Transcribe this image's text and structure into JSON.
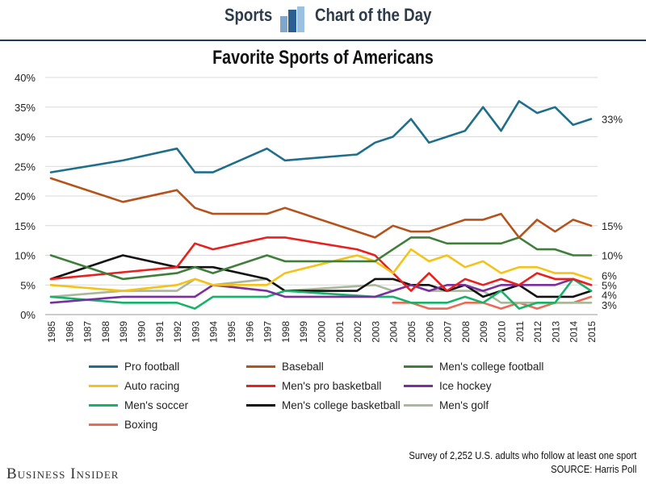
{
  "header": {
    "left_word": "Sports",
    "right_word": "Chart of the Day",
    "logo_icon": "bar-chart-logo-icon"
  },
  "colors": {
    "header_text": "#2e3b4a",
    "rule": "#1d3a5b",
    "grid": "#d9d9d9"
  },
  "footer": {
    "brand": "Business Insider",
    "note_line1": "Survey of 2,252 U.S. adults who follow at least one sport",
    "note_line2": "SOURCE: Harris Poll"
  },
  "chart_data": {
    "type": "line",
    "title": "Favorite Sports of Americans",
    "xlabel": "",
    "ylabel": "",
    "ylim": [
      0,
      40
    ],
    "xlim": [
      1985,
      2015
    ],
    "yticks": [
      0,
      5,
      10,
      15,
      20,
      25,
      30,
      35,
      40
    ],
    "ytick_labels": [
      "0%",
      "5%",
      "10%",
      "15%",
      "20%",
      "25%",
      "30%",
      "35%",
      "40%"
    ],
    "xtick_labels": [
      "1985",
      "1986",
      "1987",
      "1988",
      "1989",
      "1990",
      "1991",
      "1992",
      "1993",
      "1994",
      "1995",
      "1996",
      "1997",
      "1998",
      "1999",
      "2000",
      "2001",
      "2002",
      "2003",
      "2004",
      "2005",
      "2006",
      "2007",
      "2008",
      "2009",
      "2010",
      "2011",
      "2012",
      "2013",
      "2014",
      "2015"
    ],
    "grid": "horizontal",
    "legend_position": "bottom",
    "series": [
      {
        "name": "Pro football",
        "color": "#1f6e8c",
        "points": [
          [
            1985,
            24
          ],
          [
            1989,
            26
          ],
          [
            1992,
            28
          ],
          [
            1993,
            24
          ],
          [
            1994,
            24
          ],
          [
            1997,
            28
          ],
          [
            1998,
            26
          ],
          [
            2002,
            27
          ],
          [
            2003,
            29
          ],
          [
            2004,
            30
          ],
          [
            2005,
            33
          ],
          [
            2006,
            29
          ],
          [
            2007,
            30
          ],
          [
            2008,
            31
          ],
          [
            2009,
            35
          ],
          [
            2010,
            31
          ],
          [
            2011,
            36
          ],
          [
            2012,
            34
          ],
          [
            2013,
            35
          ],
          [
            2014,
            32
          ],
          [
            2015,
            33
          ]
        ],
        "end_label": "33%"
      },
      {
        "name": "Baseball",
        "color": "#b5531c",
        "points": [
          [
            1985,
            23
          ],
          [
            1989,
            19
          ],
          [
            1992,
            21
          ],
          [
            1993,
            18
          ],
          [
            1994,
            17
          ],
          [
            1997,
            17
          ],
          [
            1998,
            18
          ],
          [
            2003,
            13
          ],
          [
            2004,
            15
          ],
          [
            2005,
            14
          ],
          [
            2006,
            14
          ],
          [
            2007,
            15
          ],
          [
            2008,
            16
          ],
          [
            2009,
            16
          ],
          [
            2010,
            17
          ],
          [
            2011,
            13
          ],
          [
            2012,
            16
          ],
          [
            2013,
            14
          ],
          [
            2014,
            16
          ],
          [
            2015,
            15
          ]
        ],
        "end_label": "15%"
      },
      {
        "name": "Men's college football",
        "color": "#3f7f3a",
        "points": [
          [
            1985,
            10
          ],
          [
            1989,
            6
          ],
          [
            1992,
            7
          ],
          [
            1993,
            8
          ],
          [
            1994,
            7
          ],
          [
            1997,
            10
          ],
          [
            1998,
            9
          ],
          [
            2003,
            9
          ],
          [
            2004,
            11
          ],
          [
            2005,
            13
          ],
          [
            2006,
            13
          ],
          [
            2007,
            12
          ],
          [
            2008,
            12
          ],
          [
            2009,
            12
          ],
          [
            2010,
            12
          ],
          [
            2011,
            13
          ],
          [
            2012,
            11
          ],
          [
            2013,
            11
          ],
          [
            2014,
            10
          ],
          [
            2015,
            10
          ]
        ],
        "end_label": "10%"
      },
      {
        "name": "Auto racing",
        "color": "#f5c218",
        "points": [
          [
            1985,
            5
          ],
          [
            1989,
            4
          ],
          [
            1992,
            5
          ],
          [
            1993,
            6
          ],
          [
            1994,
            5
          ],
          [
            1997,
            5
          ],
          [
            1998,
            7
          ],
          [
            2002,
            10
          ],
          [
            2003,
            9
          ],
          [
            2004,
            7
          ],
          [
            2005,
            11
          ],
          [
            2006,
            9
          ],
          [
            2007,
            10
          ],
          [
            2008,
            8
          ],
          [
            2009,
            9
          ],
          [
            2010,
            7
          ],
          [
            2011,
            8
          ],
          [
            2012,
            8
          ],
          [
            2013,
            7
          ],
          [
            2014,
            7
          ],
          [
            2015,
            6
          ]
        ],
        "end_label": "6%"
      },
      {
        "name": "Men's pro basketball",
        "color": "#e8201e",
        "points": [
          [
            1985,
            6
          ],
          [
            1992,
            8
          ],
          [
            1993,
            12
          ],
          [
            1994,
            11
          ],
          [
            1997,
            13
          ],
          [
            1998,
            13
          ],
          [
            2002,
            11
          ],
          [
            2003,
            10
          ],
          [
            2004,
            7
          ],
          [
            2005,
            4
          ],
          [
            2006,
            7
          ],
          [
            2007,
            4
          ],
          [
            2008,
            6
          ],
          [
            2009,
            5
          ],
          [
            2010,
            6
          ],
          [
            2011,
            5
          ],
          [
            2012,
            7
          ],
          [
            2013,
            6
          ],
          [
            2014,
            6
          ],
          [
            2015,
            5
          ]
        ],
        "end_label": "5%"
      },
      {
        "name": "Ice hockey",
        "color": "#7b2f9e",
        "points": [
          [
            1985,
            2
          ],
          [
            1989,
            3
          ],
          [
            1993,
            3
          ],
          [
            1994,
            5
          ],
          [
            1997,
            4
          ],
          [
            1998,
            3
          ],
          [
            2003,
            3
          ],
          [
            2004,
            4
          ],
          [
            2005,
            5
          ],
          [
            2006,
            4
          ],
          [
            2007,
            5
          ],
          [
            2008,
            5
          ],
          [
            2009,
            4
          ],
          [
            2010,
            5
          ],
          [
            2011,
            5
          ],
          [
            2012,
            5
          ],
          [
            2013,
            5
          ],
          [
            2014,
            6
          ],
          [
            2015,
            5
          ]
        ],
        "end_label": ""
      },
      {
        "name": "Men's soccer",
        "color": "#17b26a",
        "points": [
          [
            1985,
            3
          ],
          [
            1989,
            2
          ],
          [
            1992,
            2
          ],
          [
            1993,
            1
          ],
          [
            1994,
            3
          ],
          [
            1997,
            3
          ],
          [
            1998,
            4
          ],
          [
            2003,
            3
          ],
          [
            2004,
            3
          ],
          [
            2005,
            2
          ],
          [
            2006,
            2
          ],
          [
            2007,
            2
          ],
          [
            2008,
            3
          ],
          [
            2009,
            2
          ],
          [
            2010,
            4
          ],
          [
            2011,
            1
          ],
          [
            2012,
            2
          ],
          [
            2013,
            2
          ],
          [
            2014,
            6
          ],
          [
            2015,
            4
          ]
        ],
        "end_label": "4%"
      },
      {
        "name": "Men's college basketball",
        "color": "#111111",
        "points": [
          [
            1985,
            6
          ],
          [
            1989,
            10
          ],
          [
            1992,
            8
          ],
          [
            1993,
            8
          ],
          [
            1994,
            8
          ],
          [
            1997,
            6
          ],
          [
            1998,
            4
          ],
          [
            2002,
            4
          ],
          [
            2003,
            6
          ],
          [
            2004,
            6
          ],
          [
            2005,
            5
          ],
          [
            2006,
            5
          ],
          [
            2007,
            4
          ],
          [
            2008,
            5
          ],
          [
            2009,
            3
          ],
          [
            2010,
            4
          ],
          [
            2011,
            5
          ],
          [
            2012,
            3
          ],
          [
            2013,
            3
          ],
          [
            2014,
            3
          ],
          [
            2015,
            4
          ]
        ],
        "end_label": ""
      },
      {
        "name": "Men's golf",
        "color": "#a9b79a",
        "points": [
          [
            1985,
            3
          ],
          [
            1989,
            4
          ],
          [
            1992,
            4
          ],
          [
            1993,
            6
          ],
          [
            1994,
            5
          ],
          [
            1997,
            6
          ],
          [
            1998,
            4
          ],
          [
            2003,
            5
          ],
          [
            2004,
            4
          ],
          [
            2005,
            5
          ],
          [
            2006,
            4
          ],
          [
            2007,
            4
          ],
          [
            2008,
            4
          ],
          [
            2009,
            4
          ],
          [
            2010,
            2
          ],
          [
            2011,
            2
          ],
          [
            2012,
            2
          ],
          [
            2013,
            2
          ],
          [
            2014,
            2
          ],
          [
            2015,
            2
          ]
        ],
        "end_label": ""
      },
      {
        "name": "Boxing",
        "color": "#ec6a55",
        "points": [
          [
            2004,
            2
          ],
          [
            2005,
            2
          ],
          [
            2006,
            1
          ],
          [
            2007,
            1
          ],
          [
            2008,
            2
          ],
          [
            2009,
            2
          ],
          [
            2010,
            1
          ],
          [
            2011,
            2
          ],
          [
            2012,
            1
          ],
          [
            2013,
            2
          ],
          [
            2014,
            2
          ],
          [
            2015,
            3
          ]
        ],
        "end_label": "3%"
      }
    ]
  }
}
